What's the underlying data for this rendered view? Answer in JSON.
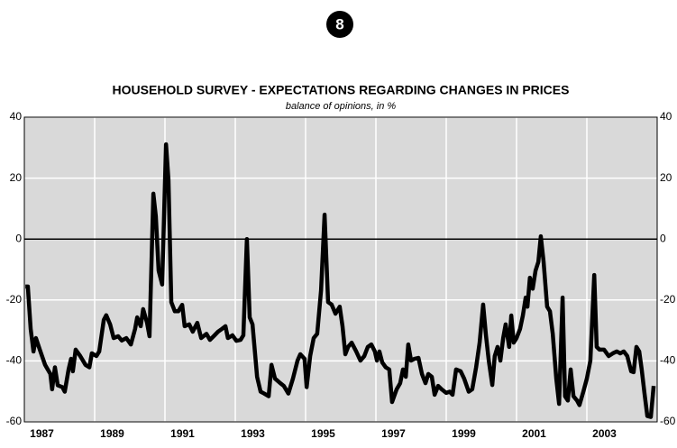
{
  "badge": "8",
  "chart_data": {
    "type": "line",
    "title": "HOUSEHOLD SURVEY - EXPECTATIONS REGARDING CHANGES IN PRICES",
    "subtitle": "balance of opinions, in %",
    "xlim": [
      1987,
      2005
    ],
    "xticks": [
      {
        "value": 1987.5,
        "label": "1987"
      },
      {
        "value": 1989.5,
        "label": "1989"
      },
      {
        "value": 1991.5,
        "label": "1991"
      },
      {
        "value": 1993.5,
        "label": "1993"
      },
      {
        "value": 1995.5,
        "label": "1995"
      },
      {
        "value": 1997.5,
        "label": "1997"
      },
      {
        "value": 1999.5,
        "label": "1999"
      },
      {
        "value": 2001.5,
        "label": "2001"
      },
      {
        "value": 2003.5,
        "label": "2003"
      }
    ],
    "xgrid": [
      1989,
      1991,
      1993,
      1995,
      1997,
      1999,
      2001,
      2003
    ],
    "ylim": [
      -60,
      40
    ],
    "yticks": [
      -60,
      -40,
      -20,
      0,
      20,
      40
    ],
    "grid": true,
    "background": "#d9d9d9",
    "series": [
      {
        "color": "#000000",
        "x": [
          1987.03,
          1987.1,
          1987.18,
          1987.26,
          1987.33,
          1987.44,
          1987.59,
          1987.74,
          1987.79,
          1987.87,
          1987.95,
          1988.08,
          1988.15,
          1988.26,
          1988.33,
          1988.38,
          1988.46,
          1988.59,
          1988.74,
          1988.85,
          1988.92,
          1989.05,
          1989.13,
          1989.26,
          1989.33,
          1989.44,
          1989.54,
          1989.67,
          1989.77,
          1989.9,
          1990.03,
          1990.15,
          1990.21,
          1990.31,
          1990.38,
          1990.49,
          1990.56,
          1990.67,
          1990.74,
          1990.82,
          1990.92,
          1991.03,
          1991.1,
          1991.18,
          1991.28,
          1991.38,
          1991.49,
          1991.56,
          1991.69,
          1991.79,
          1991.92,
          1992.03,
          1992.18,
          1992.28,
          1992.41,
          1992.51,
          1992.62,
          1992.72,
          1992.79,
          1992.92,
          1993.03,
          1993.15,
          1993.23,
          1993.33,
          1993.41,
          1993.49,
          1993.62,
          1993.72,
          1993.82,
          1993.95,
          1994.03,
          1994.13,
          1994.28,
          1994.38,
          1994.51,
          1994.64,
          1994.77,
          1994.85,
          1994.97,
          1995.03,
          1995.13,
          1995.23,
          1995.33,
          1995.44,
          1995.54,
          1995.64,
          1995.74,
          1995.85,
          1995.97,
          1996.05,
          1996.13,
          1996.21,
          1996.31,
          1996.44,
          1996.56,
          1996.67,
          1996.77,
          1996.87,
          1996.97,
          1997.03,
          1997.1,
          1997.18,
          1997.28,
          1997.38,
          1997.46,
          1997.59,
          1997.69,
          1997.77,
          1997.85,
          1997.92,
          1998.0,
          1998.1,
          1998.21,
          1998.31,
          1998.41,
          1998.49,
          1998.59,
          1998.67,
          1998.77,
          1998.87,
          1999.0,
          1999.1,
          1999.18,
          1999.28,
          1999.41,
          1999.51,
          1999.64,
          1999.74,
          1999.85,
          1999.95,
          2000.05,
          2000.13,
          2000.21,
          2000.31,
          2000.38,
          2000.46,
          2000.54,
          2000.62,
          2000.69,
          2000.79,
          2000.85,
          2000.92,
          2001.0,
          2001.1,
          2001.18,
          2001.26,
          2001.31,
          2001.38,
          2001.46,
          2001.54,
          2001.62,
          2001.69,
          2001.77,
          2001.87,
          2001.95,
          2002.03,
          2002.13,
          2002.21,
          2002.31,
          2002.38,
          2002.46,
          2002.54,
          2002.62,
          2002.72,
          2002.79,
          2002.9,
          2003.0,
          2003.1,
          2003.21,
          2003.28,
          2003.36,
          2003.49,
          2003.62,
          2003.74,
          2003.85,
          2003.95,
          2004.05,
          2004.15,
          2004.26,
          2004.33,
          2004.41,
          2004.49,
          2004.56,
          2004.64,
          2004.72,
          2004.82,
          2004.9
        ],
        "values": [
          -15.6,
          -15.6,
          -29.5,
          -36.9,
          -32.5,
          -36.3,
          -41.3,
          -44.3,
          -49.3,
          -42.1,
          -48.0,
          -48.6,
          -50.1,
          -42.7,
          -39.3,
          -43.4,
          -36.3,
          -38.4,
          -41.3,
          -42.1,
          -37.5,
          -38.4,
          -36.9,
          -26.5,
          -25.0,
          -28.0,
          -32.5,
          -31.9,
          -33.3,
          -32.5,
          -34.6,
          -29.5,
          -25.7,
          -28.6,
          -23.0,
          -27.5,
          -31.9,
          14.9,
          7.5,
          -10.4,
          -14.9,
          31.1,
          19.3,
          -20.7,
          -23.7,
          -23.7,
          -21.6,
          -28.6,
          -28.0,
          -30.4,
          -27.5,
          -32.5,
          -31.1,
          -33.1,
          -31.6,
          -30.4,
          -29.5,
          -28.6,
          -32.5,
          -31.6,
          -33.4,
          -33.1,
          -31.6,
          0,
          -25.7,
          -28.0,
          -45.2,
          -50.1,
          -50.7,
          -51.6,
          -41.3,
          -45.8,
          -47.3,
          -48.2,
          -50.7,
          -45.8,
          -39.9,
          -37.8,
          -39.3,
          -48.6,
          -38.4,
          -32.5,
          -31.1,
          -16.8,
          8.0,
          -20.7,
          -21.5,
          -24.5,
          -22.2,
          -28.6,
          -37.8,
          -35.4,
          -34.0,
          -36.9,
          -39.9,
          -38.4,
          -35.4,
          -34.6,
          -36.9,
          -39.9,
          -36.9,
          -40.5,
          -42.1,
          -42.8,
          -53.5,
          -49.3,
          -47.3,
          -42.8,
          -45.2,
          -34.6,
          -39.9,
          -39.3,
          -39.0,
          -44.3,
          -47.3,
          -44.3,
          -45.2,
          -51.1,
          -48.2,
          -49.3,
          -50.5,
          -50.1,
          -51.1,
          -42.8,
          -43.4,
          -45.8,
          -50.1,
          -49.3,
          -42.1,
          -34.0,
          -21.5,
          -31.6,
          -39.9,
          -47.9,
          -38.4,
          -35.4,
          -39.9,
          -32.5,
          -28.0,
          -35.4,
          -25.1,
          -34.0,
          -32.5,
          -29.5,
          -25.1,
          -19.2,
          -22.2,
          -12.7,
          -16.3,
          -10.4,
          -7.5,
          0.9,
          -7.5,
          -22.2,
          -23.7,
          -31.1,
          -45.8,
          -54.1,
          -19.2,
          -51.6,
          -53.0,
          -42.8,
          -51.6,
          -53.0,
          -54.5,
          -50.1,
          -45.8,
          -39.9,
          -11.8,
          -35.4,
          -36.3,
          -36.3,
          -38.4,
          -37.5,
          -36.9,
          -37.5,
          -36.9,
          -38.4,
          -43.4,
          -43.7,
          -35.4,
          -36.9,
          -42.8,
          -50.7,
          -58.1,
          -58.4,
          -48.2
        ]
      }
    ]
  }
}
